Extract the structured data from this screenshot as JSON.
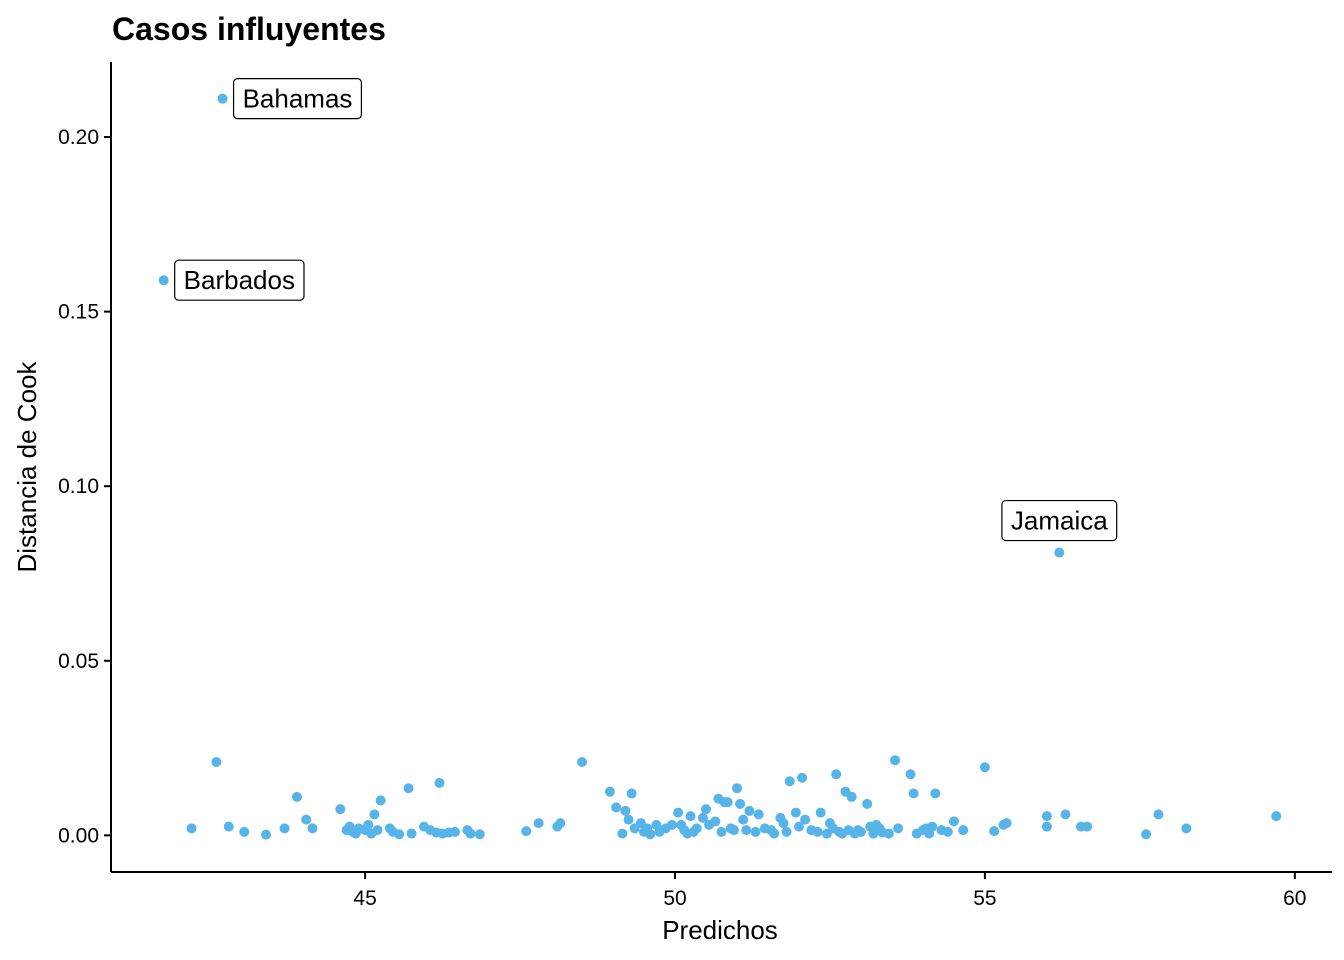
{
  "chart_data": {
    "type": "scatter",
    "title": "Casos influyentes",
    "xlabel": "Predichos",
    "ylabel": "Distancia de Cook",
    "xlim": [
      40.9,
      60.6
    ],
    "ylim": [
      -0.0105,
      0.2215
    ],
    "x_ticks": [
      45,
      50,
      55,
      60
    ],
    "x_tick_labels": [
      "45",
      "50",
      "55",
      "60"
    ],
    "y_ticks": [
      0.0,
      0.05,
      0.1,
      0.15,
      0.2
    ],
    "y_tick_labels": [
      "0.00",
      "0.05",
      "0.10",
      "0.15",
      "0.20"
    ],
    "point_color": "#56B4E9",
    "grid": false,
    "labeled_points": [
      {
        "label": "Bahamas",
        "x": 42.7,
        "y": 0.211
      },
      {
        "label": "Barbados",
        "x": 41.75,
        "y": 0.159
      },
      {
        "label": "Jamaica",
        "x": 56.2,
        "y": 0.081
      }
    ],
    "points": [
      [
        42.7,
        0.211
      ],
      [
        41.75,
        0.159
      ],
      [
        56.2,
        0.081
      ],
      [
        42.2,
        0.002
      ],
      [
        42.6,
        0.021
      ],
      [
        42.8,
        0.0025
      ],
      [
        43.05,
        0.001
      ],
      [
        43.4,
        0.0002
      ],
      [
        43.7,
        0.002
      ],
      [
        43.9,
        0.011
      ],
      [
        44.05,
        0.0045
      ],
      [
        44.15,
        0.002
      ],
      [
        44.6,
        0.0075
      ],
      [
        44.7,
        0.0015
      ],
      [
        44.75,
        0.0025
      ],
      [
        44.8,
        0.001
      ],
      [
        44.85,
        0.0005
      ],
      [
        44.9,
        0.002
      ],
      [
        45.0,
        0.0015
      ],
      [
        45.05,
        0.003
      ],
      [
        45.1,
        0.0005
      ],
      [
        45.15,
        0.006
      ],
      [
        45.2,
        0.0015
      ],
      [
        45.25,
        0.01
      ],
      [
        45.4,
        0.002
      ],
      [
        45.45,
        0.001
      ],
      [
        45.55,
        0.0003
      ],
      [
        45.7,
        0.0135
      ],
      [
        45.75,
        0.0005
      ],
      [
        45.95,
        0.0025
      ],
      [
        46.05,
        0.0015
      ],
      [
        46.15,
        0.0008
      ],
      [
        46.2,
        0.015
      ],
      [
        46.25,
        0.0005
      ],
      [
        46.35,
        0.0008
      ],
      [
        46.45,
        0.001
      ],
      [
        46.65,
        0.0015
      ],
      [
        46.7,
        0.0005
      ],
      [
        46.85,
        0.0003
      ],
      [
        47.6,
        0.0012
      ],
      [
        47.8,
        0.0035
      ],
      [
        48.1,
        0.0025
      ],
      [
        48.15,
        0.0035
      ],
      [
        48.5,
        0.021
      ],
      [
        48.95,
        0.0125
      ],
      [
        49.05,
        0.008
      ],
      [
        49.15,
        0.0005
      ],
      [
        49.2,
        0.007
      ],
      [
        49.25,
        0.0045
      ],
      [
        49.3,
        0.012
      ],
      [
        49.35,
        0.002
      ],
      [
        49.45,
        0.0035
      ],
      [
        49.5,
        0.001
      ],
      [
        49.55,
        0.002
      ],
      [
        49.6,
        0.0003
      ],
      [
        49.7,
        0.003
      ],
      [
        49.75,
        0.001
      ],
      [
        49.85,
        0.002
      ],
      [
        49.95,
        0.003
      ],
      [
        50.05,
        0.0065
      ],
      [
        50.1,
        0.003
      ],
      [
        50.15,
        0.0015
      ],
      [
        50.2,
        0.0005
      ],
      [
        50.25,
        0.0055
      ],
      [
        50.3,
        0.001
      ],
      [
        50.35,
        0.002
      ],
      [
        50.45,
        0.005
      ],
      [
        50.5,
        0.0075
      ],
      [
        50.55,
        0.003
      ],
      [
        50.65,
        0.004
      ],
      [
        50.7,
        0.0105
      ],
      [
        50.75,
        0.001
      ],
      [
        50.8,
        0.0095
      ],
      [
        50.85,
        0.0095
      ],
      [
        50.9,
        0.002
      ],
      [
        50.95,
        0.0015
      ],
      [
        51.0,
        0.0135
      ],
      [
        51.05,
        0.009
      ],
      [
        51.1,
        0.0045
      ],
      [
        51.15,
        0.0015
      ],
      [
        51.2,
        0.007
      ],
      [
        51.3,
        0.001
      ],
      [
        51.35,
        0.006
      ],
      [
        51.45,
        0.002
      ],
      [
        51.55,
        0.0015
      ],
      [
        51.6,
        0.0005
      ],
      [
        51.7,
        0.005
      ],
      [
        51.75,
        0.0035
      ],
      [
        51.8,
        0.001
      ],
      [
        51.85,
        0.0155
      ],
      [
        51.95,
        0.0065
      ],
      [
        52.0,
        0.0025
      ],
      [
        52.05,
        0.0165
      ],
      [
        52.1,
        0.0045
      ],
      [
        52.2,
        0.0015
      ],
      [
        52.3,
        0.001
      ],
      [
        52.35,
        0.0065
      ],
      [
        52.45,
        0.0005
      ],
      [
        52.5,
        0.0035
      ],
      [
        52.55,
        0.002
      ],
      [
        52.6,
        0.0175
      ],
      [
        52.65,
        0.001
      ],
      [
        52.7,
        0.0005
      ],
      [
        52.75,
        0.0125
      ],
      [
        52.8,
        0.0015
      ],
      [
        52.85,
        0.011
      ],
      [
        52.9,
        0.0005
      ],
      [
        52.95,
        0.0015
      ],
      [
        53.0,
        0.001
      ],
      [
        53.1,
        0.009
      ],
      [
        53.15,
        0.0025
      ],
      [
        53.2,
        0.0005
      ],
      [
        53.25,
        0.003
      ],
      [
        53.3,
        0.002
      ],
      [
        53.35,
        0.0008
      ],
      [
        53.45,
        0.0005
      ],
      [
        53.55,
        0.0215
      ],
      [
        53.6,
        0.002
      ],
      [
        53.8,
        0.0175
      ],
      [
        53.85,
        0.012
      ],
      [
        53.9,
        0.0005
      ],
      [
        54.0,
        0.0015
      ],
      [
        54.05,
        0.002
      ],
      [
        54.1,
        0.0005
      ],
      [
        54.15,
        0.0025
      ],
      [
        54.2,
        0.012
      ],
      [
        54.3,
        0.0015
      ],
      [
        54.4,
        0.001
      ],
      [
        54.5,
        0.004
      ],
      [
        54.65,
        0.0015
      ],
      [
        55.0,
        0.0195
      ],
      [
        55.15,
        0.0012
      ],
      [
        55.3,
        0.003
      ],
      [
        55.35,
        0.0035
      ],
      [
        56.0,
        0.0055
      ],
      [
        56.0,
        0.0025
      ],
      [
        56.3,
        0.006
      ],
      [
        56.55,
        0.0025
      ],
      [
        56.65,
        0.0025
      ],
      [
        57.6,
        0.0003
      ],
      [
        57.8,
        0.006
      ],
      [
        58.25,
        0.002
      ],
      [
        59.7,
        0.0055
      ]
    ]
  }
}
